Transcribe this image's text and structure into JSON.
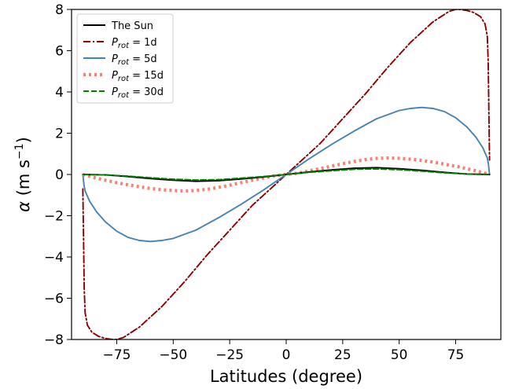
{
  "chart_data": {
    "type": "line",
    "xlabel": "Latitudes (degree)",
    "ylabel": "α (m s⁻¹)",
    "xlim": [
      -95,
      95
    ],
    "ylim": [
      -8,
      8
    ],
    "x_ticks": [
      -75,
      -50,
      -25,
      0,
      25,
      50,
      75
    ],
    "x_tick_labels": [
      "−75",
      "−50",
      "−25",
      "0",
      "25",
      "50",
      "75"
    ],
    "y_ticks": [
      -8,
      -6,
      -4,
      -2,
      0,
      2,
      4,
      6,
      8
    ],
    "y_tick_labels": [
      "−8",
      "−6",
      "−4",
      "−2",
      "0",
      "2",
      "4",
      "6",
      "8"
    ],
    "grid": false,
    "legend_position": "top-left",
    "series": [
      {
        "name": "The Sun",
        "color": "#000000",
        "dash": "solid",
        "x": [
          -90,
          -80,
          -70,
          -60,
          -50,
          -40,
          -30,
          -20,
          -10,
          0,
          10,
          20,
          30,
          40,
          50,
          60,
          70,
          80,
          90
        ],
        "y": [
          0.0,
          -0.02,
          -0.1,
          -0.2,
          -0.28,
          -0.33,
          -0.3,
          -0.22,
          -0.12,
          0.0,
          0.12,
          0.22,
          0.3,
          0.33,
          0.28,
          0.2,
          0.1,
          0.02,
          0.0
        ]
      },
      {
        "name": "P_rot = 1d",
        "legend_main": "P",
        "legend_sub": "rot",
        "legend_rest": " = 1d",
        "color": "#8b0000",
        "dash": "dashdot",
        "x": [
          -90,
          -89.7,
          -89.4,
          -89,
          -88,
          -86,
          -83,
          -80,
          -77,
          -75,
          -72,
          -65,
          -55,
          -45,
          -35,
          -25,
          -15,
          -5,
          0,
          5,
          15,
          25,
          35,
          45,
          55,
          65,
          72,
          75,
          77,
          80,
          83,
          86,
          88,
          89,
          89.4,
          89.7,
          90
        ],
        "y": [
          -0.7,
          -3.0,
          -5.5,
          -6.7,
          -7.3,
          -7.65,
          -7.85,
          -7.95,
          -8.0,
          -8.0,
          -7.9,
          -7.4,
          -6.4,
          -5.2,
          -3.9,
          -2.7,
          -1.5,
          -0.5,
          0.0,
          0.5,
          1.5,
          2.7,
          3.9,
          5.2,
          6.4,
          7.4,
          7.9,
          8.0,
          8.0,
          7.95,
          7.85,
          7.65,
          7.3,
          6.7,
          5.5,
          3.0,
          0.7
        ]
      },
      {
        "name": "P_rot = 5d",
        "legend_main": "P",
        "legend_sub": "rot",
        "legend_rest": " = 5d",
        "color": "#4682b4",
        "dash": "solid",
        "x": [
          -90,
          -89.5,
          -89,
          -87,
          -84,
          -80,
          -75,
          -70,
          -65,
          -60,
          -55,
          -50,
          -40,
          -30,
          -20,
          -10,
          0,
          10,
          20,
          30,
          40,
          50,
          55,
          60,
          65,
          70,
          75,
          80,
          84,
          87,
          89,
          89.5,
          90
        ],
        "y": [
          0.0,
          -0.5,
          -0.8,
          -1.3,
          -1.8,
          -2.3,
          -2.75,
          -3.05,
          -3.2,
          -3.25,
          -3.2,
          -3.1,
          -2.7,
          -2.1,
          -1.45,
          -0.75,
          0.0,
          0.75,
          1.45,
          2.1,
          2.7,
          3.1,
          3.2,
          3.25,
          3.2,
          3.05,
          2.75,
          2.3,
          1.8,
          1.3,
          0.8,
          0.5,
          0.0
        ]
      },
      {
        "name": "P_rot = 15d",
        "legend_main": "P",
        "legend_sub": "rot",
        "legend_rest": " = 15d",
        "color": "#fa8072",
        "dash": "dotted",
        "x": [
          -90,
          -85,
          -80,
          -75,
          -70,
          -65,
          -60,
          -55,
          -50,
          -45,
          -40,
          -35,
          -30,
          -25,
          -20,
          -15,
          -10,
          -5,
          0,
          5,
          10,
          15,
          20,
          25,
          30,
          35,
          40,
          45,
          50,
          55,
          60,
          65,
          70,
          75,
          80,
          85,
          90
        ],
        "y": [
          0.0,
          -0.15,
          -0.28,
          -0.4,
          -0.5,
          -0.6,
          -0.68,
          -0.74,
          -0.78,
          -0.8,
          -0.78,
          -0.72,
          -0.63,
          -0.52,
          -0.4,
          -0.28,
          -0.17,
          -0.06,
          0.0,
          0.06,
          0.17,
          0.28,
          0.4,
          0.52,
          0.63,
          0.72,
          0.78,
          0.8,
          0.78,
          0.74,
          0.68,
          0.6,
          0.5,
          0.4,
          0.28,
          0.15,
          0.0
        ]
      },
      {
        "name": "P_rot = 30d",
        "legend_main": "P",
        "legend_sub": "rot",
        "legend_rest": " = 30d",
        "color": "#008000",
        "dash": "dashed",
        "x": [
          -90,
          -80,
          -70,
          -60,
          -50,
          -40,
          -30,
          -20,
          -10,
          0,
          10,
          20,
          30,
          40,
          50,
          60,
          70,
          80,
          90
        ],
        "y": [
          0.0,
          -0.02,
          -0.08,
          -0.16,
          -0.23,
          -0.27,
          -0.25,
          -0.18,
          -0.1,
          0.0,
          0.1,
          0.18,
          0.25,
          0.27,
          0.23,
          0.16,
          0.08,
          0.02,
          0.0
        ]
      }
    ]
  }
}
